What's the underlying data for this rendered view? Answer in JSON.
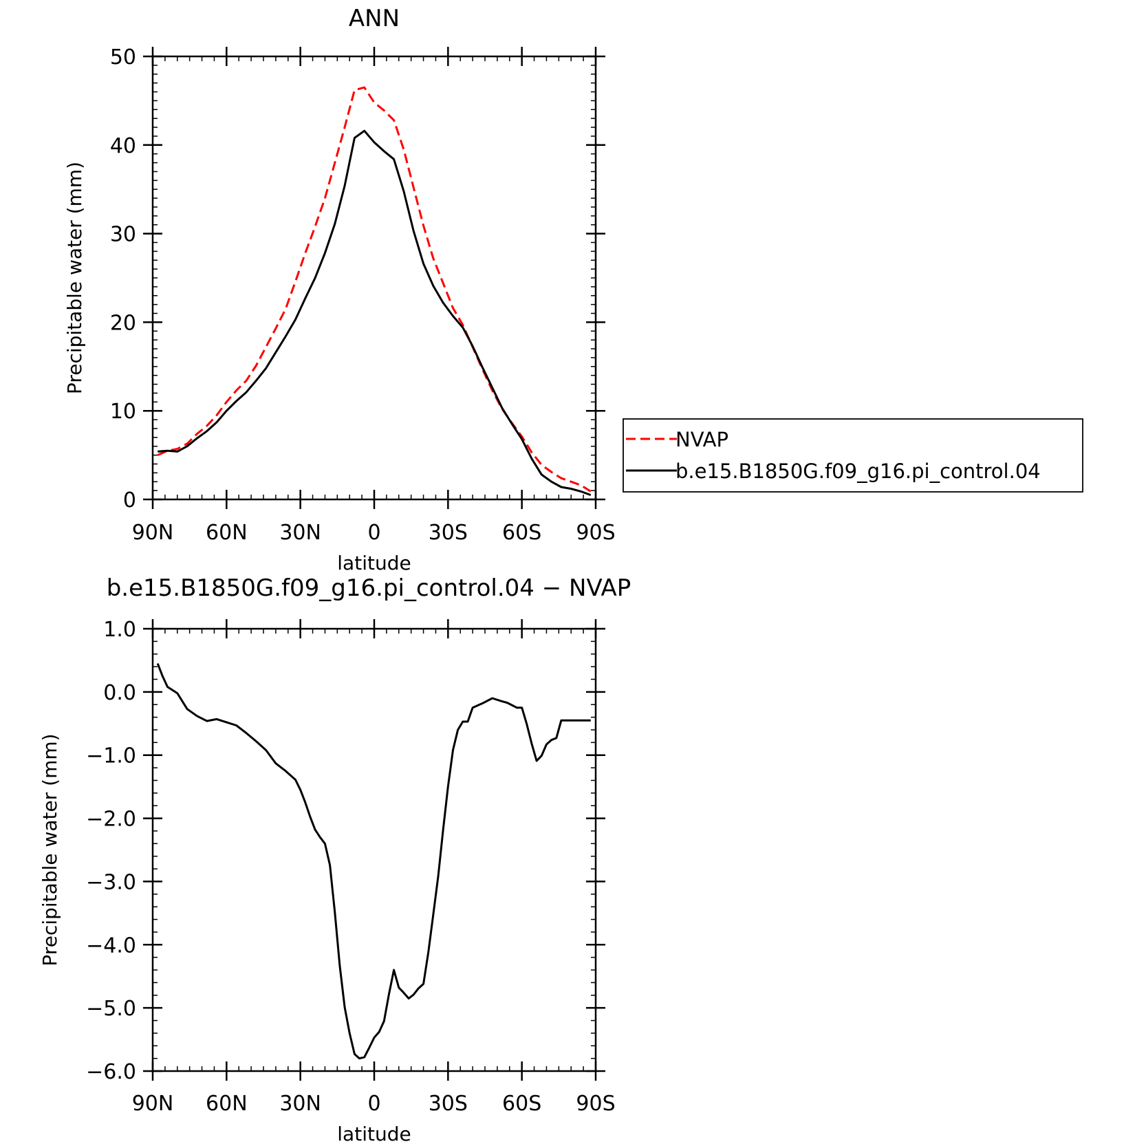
{
  "chart_data": [
    {
      "type": "line",
      "title": "ANN",
      "xlabel": "latitude",
      "ylabel": "Precipitable water (mm)",
      "xlim": [
        90,
        -90
      ],
      "ylim": [
        0,
        50
      ],
      "xticks": [
        90,
        60,
        30,
        0,
        -30,
        -60,
        -90
      ],
      "xtick_labels": [
        "90N",
        "60N",
        "30N",
        "0",
        "30S",
        "60S",
        "90S"
      ],
      "yticks": [
        0,
        10,
        20,
        30,
        40,
        50
      ],
      "ytick_labels": [
        "0",
        "10",
        "20",
        "30",
        "40",
        "50"
      ],
      "grid": false,
      "legend_position": "right",
      "x": [
        88,
        84,
        80,
        76,
        72,
        68,
        64,
        60,
        56,
        52,
        48,
        44,
        40,
        36,
        32,
        28,
        24,
        20,
        16,
        12,
        8,
        4,
        0,
        -4,
        -8,
        -12,
        -16,
        -20,
        -24,
        -28,
        -32,
        -36,
        -40,
        -44,
        -48,
        -52,
        -56,
        -60,
        -64,
        -68,
        -72,
        -76,
        -80,
        -84,
        -88
      ],
      "series": [
        {
          "name": "NVAP",
          "color": "#ff0000",
          "dash": "dashed",
          "values": [
            5.0,
            5.5,
            5.7,
            6.3,
            7.4,
            8.3,
            9.5,
            11.0,
            12.3,
            13.4,
            15.1,
            17.2,
            19.3,
            21.5,
            24.6,
            27.8,
            30.8,
            34.0,
            38.0,
            42.0,
            46.2,
            46.5,
            44.8,
            43.9,
            42.8,
            39.5,
            35.2,
            30.9,
            27.2,
            24.4,
            21.6,
            19.7,
            17.2,
            14.7,
            12.3,
            10.2,
            8.6,
            7.1,
            5.3,
            3.9,
            3.1,
            2.4,
            2.0,
            1.6,
            0.9
          ]
        },
        {
          "name": "b.e15.B1850G.f09_g16.pi_control.04",
          "color": "#000000",
          "dash": "solid",
          "values": [
            5.4,
            5.5,
            5.4,
            6.0,
            6.9,
            7.7,
            8.7,
            10.0,
            11.1,
            12.1,
            13.4,
            14.8,
            16.6,
            18.4,
            20.3,
            22.7,
            25.0,
            27.8,
            31.1,
            35.4,
            40.8,
            41.6,
            40.3,
            39.3,
            38.4,
            34.8,
            30.3,
            26.6,
            24.1,
            22.2,
            20.7,
            19.4,
            17.3,
            14.9,
            12.6,
            10.3,
            8.5,
            6.8,
            4.6,
            2.8,
            2.0,
            1.4,
            1.2,
            0.9,
            0.5
          ]
        }
      ]
    },
    {
      "type": "line",
      "title": "b.e15.B1850G.f09_g16.pi_control.04 − NVAP",
      "xlabel": "latitude",
      "ylabel": "Precipitable water (mm)",
      "xlim": [
        90,
        -90
      ],
      "ylim": [
        -6.0,
        1.0
      ],
      "xticks": [
        90,
        60,
        30,
        0,
        -30,
        -60,
        -90
      ],
      "xtick_labels": [
        "90N",
        "60N",
        "30N",
        "0",
        "30S",
        "60S",
        "90S"
      ],
      "yticks": [
        1.0,
        0.0,
        -1.0,
        -2.0,
        -3.0,
        -4.0,
        -5.0,
        -6.0
      ],
      "ytick_labels": [
        "1.0",
        "0.0",
        "−1.0",
        "−2.0",
        "−3.0",
        "−4.0",
        "−5.0",
        "−6.0"
      ],
      "grid": false,
      "x": [
        88,
        86,
        84,
        80,
        76,
        72,
        68,
        64,
        60,
        56,
        52,
        48,
        44,
        40,
        36,
        32,
        30,
        28,
        26,
        24,
        22,
        20,
        18,
        16,
        14,
        12,
        10,
        8,
        6,
        4,
        2,
        0,
        -2,
        -4,
        -6,
        -8,
        -10,
        -12,
        -14,
        -16,
        -18,
        -20,
        -22,
        -24,
        -26,
        -28,
        -30,
        -32,
        -34,
        -36,
        -38,
        -40,
        -44,
        -48,
        -52,
        -54,
        -56,
        -58,
        -60,
        -62,
        -64,
        -66,
        -68,
        -70,
        -72,
        -74,
        -76,
        -78,
        -80,
        -82,
        -84,
        -86,
        -88
      ],
      "series": [
        {
          "color": "#000000",
          "dash": "solid",
          "values": [
            0.45,
            0.25,
            0.08,
            -0.02,
            -0.27,
            -0.38,
            -0.46,
            -0.43,
            -0.48,
            -0.53,
            -0.65,
            -0.78,
            -0.92,
            -1.13,
            -1.25,
            -1.39,
            -1.55,
            -1.75,
            -1.98,
            -2.18,
            -2.3,
            -2.4,
            -2.74,
            -3.49,
            -4.33,
            -4.99,
            -5.4,
            -5.73,
            -5.8,
            -5.78,
            -5.63,
            -5.47,
            -5.38,
            -5.21,
            -4.78,
            -4.4,
            -4.68,
            -4.76,
            -4.85,
            -4.79,
            -4.69,
            -4.62,
            -4.12,
            -3.52,
            -2.92,
            -2.18,
            -1.5,
            -0.92,
            -0.6,
            -0.47,
            -0.47,
            -0.25,
            -0.18,
            -0.1,
            -0.15,
            -0.17,
            -0.21,
            -0.25,
            -0.25,
            -0.51,
            -0.82,
            -1.09,
            -1.01,
            -0.83,
            -0.76,
            -0.73,
            -0.45,
            -0.45,
            -0.45,
            -0.45,
            -0.45,
            -0.45,
            -0.45
          ]
        }
      ]
    }
  ]
}
